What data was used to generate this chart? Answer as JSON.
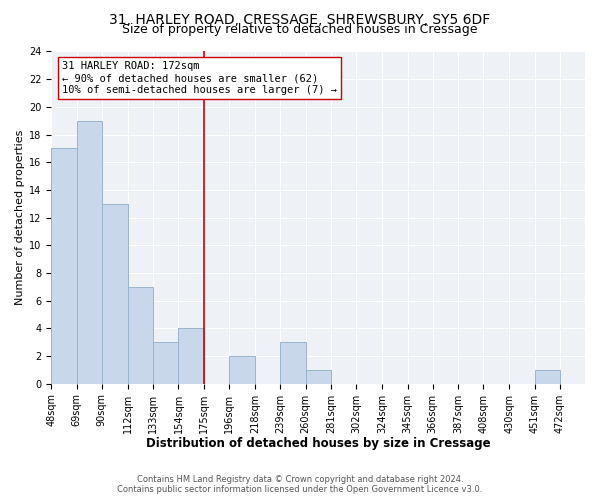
{
  "title1": "31, HARLEY ROAD, CRESSAGE, SHREWSBURY, SY5 6DF",
  "title2": "Size of property relative to detached houses in Cressage",
  "xlabel": "Distribution of detached houses by size in Cressage",
  "ylabel": "Number of detached properties",
  "bar_edges": [
    48,
    69,
    90,
    112,
    133,
    154,
    175,
    196,
    218,
    239,
    260,
    281,
    302,
    324,
    345,
    366,
    387,
    408,
    430,
    451,
    472
  ],
  "bar_heights": [
    17,
    19,
    13,
    7,
    3,
    4,
    0,
    2,
    0,
    3,
    1,
    0,
    0,
    0,
    0,
    0,
    0,
    0,
    0,
    1,
    0
  ],
  "bar_color": "#c8d8ea",
  "bar_edgecolor": "#9ab4cc",
  "vline_x": 175,
  "vline_color": "#cc0000",
  "annotation_text": "31 HARLEY ROAD: 172sqm\n← 90% of detached houses are smaller (62)\n10% of semi-detached houses are larger (7) →",
  "annotation_box_edgecolor": "#cc0000",
  "annotation_box_facecolor": "#ffffff",
  "ylim": [
    0,
    24
  ],
  "yticks": [
    0,
    2,
    4,
    6,
    8,
    10,
    12,
    14,
    16,
    18,
    20,
    22,
    24
  ],
  "tick_labels": [
    "48sqm",
    "69sqm",
    "90sqm",
    "112sqm",
    "133sqm",
    "154sqm",
    "175sqm",
    "196sqm",
    "218sqm",
    "239sqm",
    "260sqm",
    "281sqm",
    "302sqm",
    "324sqm",
    "345sqm",
    "366sqm",
    "387sqm",
    "408sqm",
    "430sqm",
    "451sqm",
    "472sqm"
  ],
  "footer1": "Contains HM Land Registry data © Crown copyright and database right 2024.",
  "footer2": "Contains public sector information licensed under the Open Government Licence v3.0.",
  "title1_fontsize": 10,
  "title2_fontsize": 9,
  "xlabel_fontsize": 8.5,
  "ylabel_fontsize": 8,
  "tick_fontsize": 7,
  "annotation_fontsize": 7.5,
  "footer_fontsize": 6,
  "bg_color": "#eef2f7"
}
